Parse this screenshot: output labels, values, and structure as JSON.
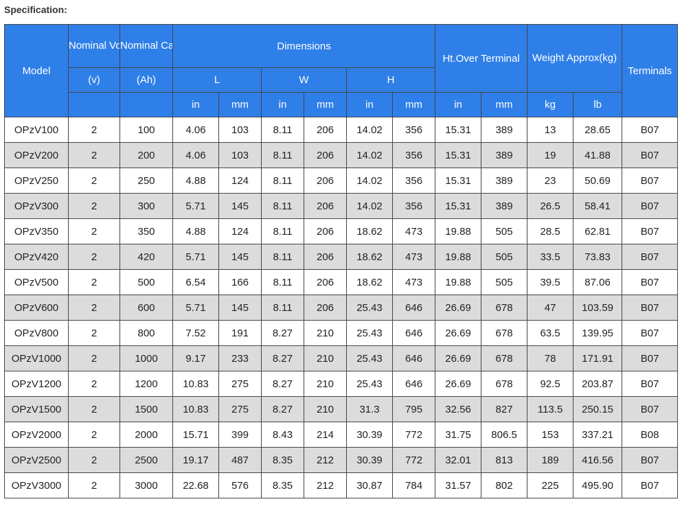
{
  "caption": "Specification:",
  "header": {
    "model": "Model",
    "nominal_voltage_top": "Nominal Voltage",
    "nominal_voltage_unit": "(v)",
    "nominal_capacity_top": "Nominal Capacity",
    "nominal_capacity_unit": "(Ah)",
    "dimensions": "Dimensions",
    "l": "L",
    "w": "W",
    "h": "H",
    "ht_over_terminal": "Ht.Over Terminal",
    "weight": "Weight Approx(kg)",
    "terminals": "Terminals",
    "units": [
      "in",
      "mm",
      "in",
      "mm",
      "in",
      "mm",
      "in",
      "mm",
      "kg",
      "lb"
    ]
  },
  "rows": [
    [
      "OPzV100",
      "2",
      "100",
      "4.06",
      "103",
      "8.11",
      "206",
      "14.02",
      "356",
      "15.31",
      "389",
      "13",
      "28.65",
      "B07"
    ],
    [
      "OPzV200",
      "2",
      "200",
      "4.06",
      "103",
      "8.11",
      "206",
      "14.02",
      "356",
      "15.31",
      "389",
      "19",
      "41.88",
      "B07"
    ],
    [
      "OPzV250",
      "2",
      "250",
      "4.88",
      "124",
      "8.11",
      "206",
      "14.02",
      "356",
      "15.31",
      "389",
      "23",
      "50.69",
      "B07"
    ],
    [
      "OPzV300",
      "2",
      "300",
      "5.71",
      "145",
      "8.11",
      "206",
      "14.02",
      "356",
      "15.31",
      "389",
      "26.5",
      "58.41",
      "B07"
    ],
    [
      "OPzV350",
      "2",
      "350",
      "4.88",
      "124",
      "8.11",
      "206",
      "18.62",
      "473",
      "19.88",
      "505",
      "28.5",
      "62.81",
      "B07"
    ],
    [
      "OPzV420",
      "2",
      "420",
      "5.71",
      "145",
      "8.11",
      "206",
      "18.62",
      "473",
      "19.88",
      "505",
      "33.5",
      "73.83",
      "B07"
    ],
    [
      "OPzV500",
      "2",
      "500",
      "6.54",
      "166",
      "8.11",
      "206",
      "18.62",
      "473",
      "19.88",
      "505",
      "39.5",
      "87.06",
      "B07"
    ],
    [
      "OPzV600",
      "2",
      "600",
      "5.71",
      "145",
      "8.11",
      "206",
      "25.43",
      "646",
      "26.69",
      "678",
      "47",
      "103.59",
      "B07"
    ],
    [
      "OPzV800",
      "2",
      "800",
      "7.52",
      "191",
      "8.27",
      "210",
      "25.43",
      "646",
      "26.69",
      "678",
      "63.5",
      "139.95",
      "B07"
    ],
    [
      "OPzV1000",
      "2",
      "1000",
      "9.17",
      "233",
      "8.27",
      "210",
      "25.43",
      "646",
      "26.69",
      "678",
      "78",
      "171.91",
      "B07"
    ],
    [
      "OPzV1200",
      "2",
      "1200",
      "10.83",
      "275",
      "8.27",
      "210",
      "25.43",
      "646",
      "26.69",
      "678",
      "92.5",
      "203.87",
      "B07"
    ],
    [
      "OPzV1500",
      "2",
      "1500",
      "10.83",
      "275",
      "8.27",
      "210",
      "31.3",
      "795",
      "32.56",
      "827",
      "113.5",
      "250.15",
      "B07"
    ],
    [
      "OPzV2000",
      "2",
      "2000",
      "15.71",
      "399",
      "8.43",
      "214",
      "30.39",
      "772",
      "31.75",
      "806.5",
      "153",
      "337.21",
      "B08"
    ],
    [
      "OPzV2500",
      "2",
      "2500",
      "19.17",
      "487",
      "8.35",
      "212",
      "30.39",
      "772",
      "32.01",
      "813",
      "189",
      "416.56",
      "B07"
    ],
    [
      "OPzV3000",
      "2",
      "3000",
      "22.68",
      "576",
      "8.35",
      "212",
      "30.87",
      "784",
      "31.57",
      "802",
      "225",
      "495.90",
      "B07"
    ]
  ]
}
